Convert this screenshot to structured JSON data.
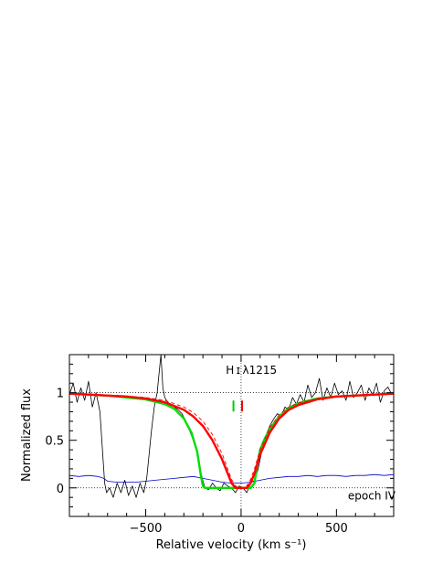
{
  "chart_data": {
    "type": "line",
    "xlabel": "Relative velocity  (km s⁻¹)",
    "ylabel": "Normalized flux",
    "xlim": [
      -900,
      800
    ],
    "ylim": [
      -0.3,
      1.4
    ],
    "xticks": [
      -500,
      0,
      500
    ],
    "xtick_labels": [
      "−500",
      "0",
      "500"
    ],
    "yticks": [
      0,
      0.5,
      1
    ],
    "ytick_labels": [
      "0",
      "0.5",
      "1"
    ],
    "reference_lines": {
      "y": [
        0,
        1
      ],
      "x": [
        0
      ]
    },
    "annotations": [
      {
        "text": "H ɪ λ1215",
        "x": -80,
        "y": 1.2
      },
      {
        "text": "epoch  IV",
        "x": 560,
        "y": -0.12
      }
    ],
    "component_markers": [
      {
        "x": -40,
        "y": 0.86,
        "color": "#00cc00"
      },
      {
        "x": 5,
        "y": 0.86,
        "color": "#ff0000"
      }
    ],
    "series": [
      {
        "style": "data",
        "color": "#000000",
        "x": [
          -900,
          -880,
          -860,
          -840,
          -820,
          -800,
          -780,
          -760,
          -740,
          -725,
          -715,
          -705,
          -690,
          -670,
          -650,
          -630,
          -610,
          -590,
          -570,
          -550,
          -530,
          -510,
          -495,
          -485,
          -470,
          -455,
          -440,
          -430,
          -420,
          -410,
          -400,
          -385,
          -370,
          -350,
          -330,
          -310,
          -290,
          -270,
          -250,
          -230,
          -210,
          -190,
          -170,
          -150,
          -130,
          -110,
          -90,
          -70,
          -50,
          -30,
          -10,
          10,
          30,
          50,
          70,
          90,
          110,
          130,
          150,
          170,
          190,
          210,
          230,
          250,
          270,
          290,
          310,
          330,
          350,
          370,
          390,
          410,
          430,
          450,
          470,
          490,
          510,
          530,
          550,
          570,
          590,
          610,
          630,
          650,
          670,
          690,
          710,
          730,
          750,
          770,
          790,
          800
        ],
        "y": [
          0.98,
          1.1,
          0.9,
          1.05,
          0.92,
          1.12,
          0.85,
          1.0,
          0.8,
          0.35,
          0.05,
          -0.05,
          0.0,
          -0.1,
          0.05,
          -0.05,
          0.08,
          -0.08,
          0.02,
          -0.1,
          0.05,
          -0.05,
          0.1,
          0.3,
          0.6,
          0.85,
          1.0,
          1.2,
          1.4,
          1.05,
          0.95,
          0.9,
          0.88,
          0.85,
          0.82,
          0.78,
          0.7,
          0.6,
          0.5,
          0.38,
          0.15,
          0.0,
          -0.02,
          0.05,
          0.0,
          -0.03,
          0.05,
          0.02,
          0.0,
          -0.05,
          0.02,
          0.0,
          -0.05,
          0.05,
          0.08,
          0.2,
          0.4,
          0.55,
          0.65,
          0.72,
          0.78,
          0.75,
          0.85,
          0.82,
          0.95,
          0.88,
          0.98,
          0.9,
          1.08,
          0.95,
          1.0,
          1.15,
          0.92,
          1.05,
          0.95,
          1.1,
          0.98,
          1.02,
          0.92,
          1.12,
          0.95,
          1.0,
          1.08,
          0.92,
          1.05,
          0.98,
          1.1,
          0.9,
          1.02,
          1.06,
          0.98,
          1.0
        ]
      },
      {
        "style": "error",
        "color": "#0000cc",
        "x": [
          -900,
          -850,
          -800,
          -750,
          -720,
          -700,
          -650,
          -600,
          -550,
          -500,
          -450,
          -400,
          -350,
          -300,
          -250,
          -200,
          -150,
          -100,
          -50,
          0,
          50,
          100,
          150,
          200,
          250,
          300,
          350,
          400,
          450,
          500,
          550,
          600,
          650,
          700,
          750,
          800
        ],
        "y": [
          0.13,
          0.12,
          0.13,
          0.12,
          0.1,
          0.07,
          0.06,
          0.06,
          0.06,
          0.07,
          0.08,
          0.09,
          0.1,
          0.11,
          0.12,
          0.1,
          0.08,
          0.06,
          0.05,
          0.05,
          0.06,
          0.08,
          0.1,
          0.11,
          0.12,
          0.12,
          0.13,
          0.12,
          0.13,
          0.13,
          0.12,
          0.13,
          0.13,
          0.14,
          0.13,
          0.14
        ]
      },
      {
        "style": "fit",
        "color": "#00dd00",
        "x": [
          -900,
          -800,
          -700,
          -600,
          -500,
          -400,
          -350,
          -300,
          -260,
          -230,
          -210,
          -200,
          -190,
          -150,
          -100,
          -50,
          0,
          50,
          70,
          85,
          100,
          120,
          150,
          200,
          250,
          300,
          400,
          500,
          600,
          700,
          800
        ],
        "y": [
          0.99,
          0.98,
          0.97,
          0.95,
          0.93,
          0.88,
          0.83,
          0.73,
          0.58,
          0.38,
          0.12,
          0.02,
          0.0,
          0.0,
          0.0,
          0.0,
          0.0,
          0.0,
          0.05,
          0.25,
          0.4,
          0.5,
          0.62,
          0.75,
          0.84,
          0.89,
          0.94,
          0.96,
          0.97,
          0.98,
          0.99
        ]
      },
      {
        "style": "fit",
        "color": "#ff0000",
        "x": [
          -900,
          -800,
          -700,
          -600,
          -500,
          -400,
          -300,
          -250,
          -200,
          -150,
          -100,
          -70,
          -50,
          -30,
          0,
          30,
          50,
          70,
          100,
          150,
          200,
          250,
          300,
          400,
          500,
          600,
          700,
          800
        ],
        "y": [
          0.99,
          0.98,
          0.97,
          0.96,
          0.94,
          0.9,
          0.82,
          0.75,
          0.65,
          0.5,
          0.3,
          0.15,
          0.05,
          0.0,
          0.0,
          0.0,
          0.05,
          0.15,
          0.35,
          0.58,
          0.73,
          0.82,
          0.87,
          0.93,
          0.96,
          0.97,
          0.98,
          0.99
        ]
      },
      {
        "style": "fit-dashed",
        "color": "#ff0000",
        "x": [
          -900,
          -800,
          -700,
          -600,
          -500,
          -400,
          -300,
          -250,
          -200,
          -150,
          -100,
          -70,
          -50,
          -30,
          0,
          30,
          50,
          70,
          100,
          150,
          200,
          250,
          300,
          400,
          500,
          600,
          700,
          800
        ],
        "y": [
          0.99,
          0.985,
          0.975,
          0.965,
          0.95,
          0.92,
          0.85,
          0.79,
          0.7,
          0.56,
          0.36,
          0.2,
          0.09,
          0.02,
          0.0,
          0.02,
          0.09,
          0.2,
          0.4,
          0.63,
          0.77,
          0.85,
          0.89,
          0.94,
          0.965,
          0.975,
          0.985,
          0.99
        ]
      }
    ]
  }
}
